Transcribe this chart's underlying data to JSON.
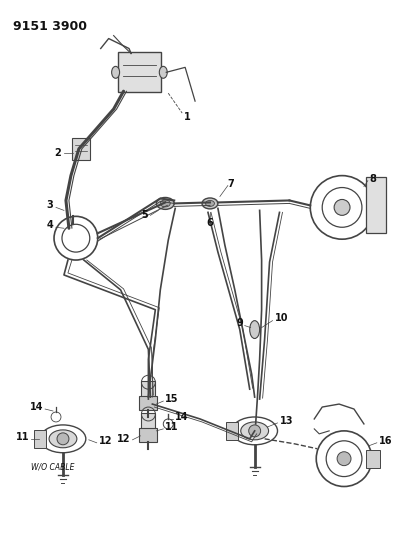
{
  "title": "9151 3900",
  "bg": "#ffffff",
  "lc": "#444444",
  "tc": "#111111",
  "fig_w": 4.11,
  "fig_h": 5.33,
  "dpi": 100,
  "fs_title": 9,
  "fs_label": 7
}
